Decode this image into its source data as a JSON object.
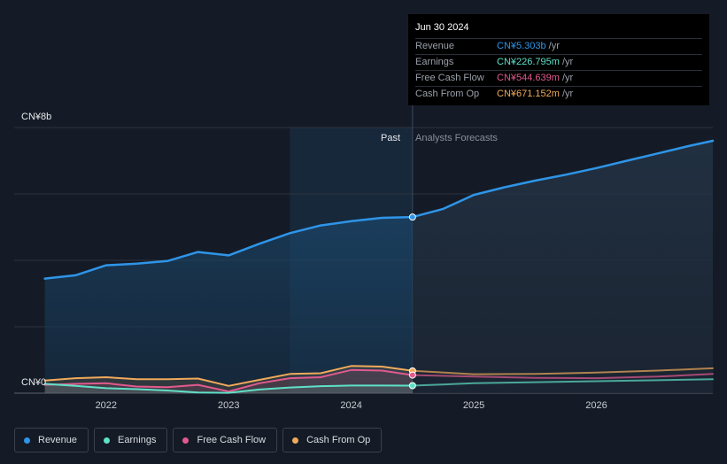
{
  "tooltip": {
    "date": "Jun 30 2024",
    "rows": [
      {
        "label": "Revenue",
        "value": "CN¥5.303b",
        "unit": "/yr",
        "color": "#2e95e8"
      },
      {
        "label": "Earnings",
        "value": "CN¥226.795m",
        "unit": "/yr",
        "color": "#5fe0c8"
      },
      {
        "label": "Free Cash Flow",
        "value": "CN¥544.639m",
        "unit": "/yr",
        "color": "#e05a8e"
      },
      {
        "label": "Cash From Op",
        "value": "CN¥671.152m",
        "unit": "/yr",
        "color": "#f0aa5a"
      }
    ]
  },
  "labels": {
    "past": "Past",
    "forecast": "Analysts Forecasts"
  },
  "legend": [
    {
      "label": "Revenue",
      "color": "#2e95e8"
    },
    {
      "label": "Earnings",
      "color": "#5fe0c8"
    },
    {
      "label": "Free Cash Flow",
      "color": "#e05a8e"
    },
    {
      "label": "Cash From Op",
      "color": "#f0aa5a"
    }
  ],
  "chart_data": {
    "type": "line",
    "ylim": [
      0,
      8
    ],
    "y_unit": "CN¥b",
    "y_tick_labels": [
      "CN¥0",
      "CN¥8b"
    ],
    "xlim": [
      2021.25,
      2026.95
    ],
    "x_ticks": [
      2022,
      2023,
      2024,
      2025,
      2026
    ],
    "x_tick_labels": [
      "2022",
      "2023",
      "2024",
      "2025",
      "2026"
    ],
    "grid": true,
    "past_end": 2024.5,
    "highlight_start": 2023.5,
    "series": [
      {
        "name": "Revenue",
        "color": "#2e95e8",
        "x": [
          2021.5,
          2021.75,
          2022.0,
          2022.25,
          2022.5,
          2022.75,
          2023.0,
          2023.25,
          2023.5,
          2023.75,
          2024.0,
          2024.25,
          2024.5
        ],
        "y": [
          3.45,
          3.55,
          3.85,
          3.9,
          3.98,
          4.25,
          4.15,
          4.5,
          4.82,
          5.05,
          5.18,
          5.28,
          5.303
        ],
        "forecast_x": [
          2024.5,
          2024.75,
          2025.0,
          2025.25,
          2025.5,
          2025.75,
          2026.0,
          2026.25,
          2026.5,
          2026.75,
          2026.95
        ],
        "forecast_y": [
          5.303,
          5.55,
          5.97,
          6.2,
          6.4,
          6.58,
          6.78,
          7.0,
          7.22,
          7.44,
          7.6
        ]
      },
      {
        "name": "Earnings",
        "color": "#5fe0c8",
        "x": [
          2021.5,
          2021.75,
          2022.0,
          2022.25,
          2022.5,
          2022.75,
          2023.0,
          2023.25,
          2023.5,
          2023.75,
          2024.0,
          2024.25,
          2024.5
        ],
        "y": [
          0.28,
          0.22,
          0.15,
          0.12,
          0.08,
          0.02,
          0.01,
          0.11,
          0.17,
          0.21,
          0.23,
          0.23,
          0.227
        ],
        "forecast_x": [
          2024.5,
          2025.0,
          2025.5,
          2026.0,
          2026.5,
          2026.95
        ],
        "forecast_y": [
          0.227,
          0.3,
          0.33,
          0.36,
          0.39,
          0.42
        ]
      },
      {
        "name": "Free Cash Flow",
        "color": "#e05a8e",
        "x": [
          2021.5,
          2021.75,
          2022.0,
          2022.25,
          2022.5,
          2022.75,
          2023.0,
          2023.25,
          2023.5,
          2023.75,
          2024.0,
          2024.25,
          2024.5
        ],
        "y": [
          0.25,
          0.28,
          0.3,
          0.2,
          0.18,
          0.25,
          0.05,
          0.3,
          0.45,
          0.48,
          0.7,
          0.68,
          0.545
        ],
        "forecast_x": [
          2024.5,
          2025.0,
          2025.5,
          2026.0,
          2026.5,
          2026.95
        ],
        "forecast_y": [
          0.545,
          0.5,
          0.46,
          0.45,
          0.5,
          0.58
        ]
      },
      {
        "name": "Cash From Op",
        "color": "#f0aa5a",
        "x": [
          2021.5,
          2021.75,
          2022.0,
          2022.25,
          2022.5,
          2022.75,
          2023.0,
          2023.25,
          2023.5,
          2023.75,
          2024.0,
          2024.25,
          2024.5
        ],
        "y": [
          0.38,
          0.45,
          0.48,
          0.42,
          0.42,
          0.44,
          0.22,
          0.4,
          0.58,
          0.6,
          0.82,
          0.8,
          0.671
        ],
        "forecast_x": [
          2024.5,
          2025.0,
          2025.5,
          2026.0,
          2026.5,
          2026.95
        ],
        "forecast_y": [
          0.671,
          0.57,
          0.58,
          0.62,
          0.68,
          0.75
        ]
      }
    ]
  }
}
